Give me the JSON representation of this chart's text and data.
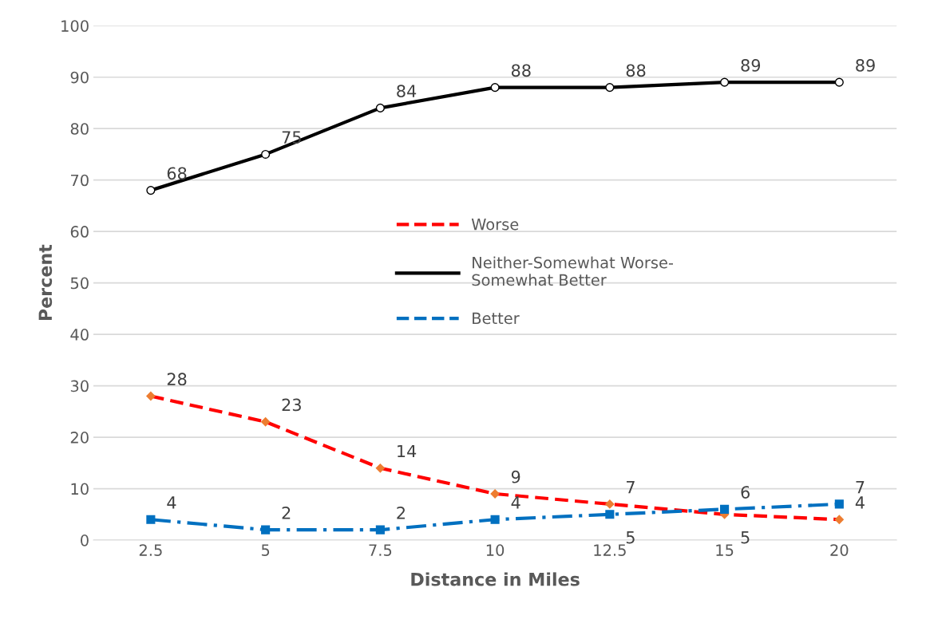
{
  "chart_data": {
    "type": "line",
    "xlabel": "Distance in Miles",
    "ylabel": "Percent",
    "categories": [
      "2.5",
      "5",
      "7.5",
      "10",
      "12.5",
      "15",
      "20"
    ],
    "series": [
      {
        "name": "Worse",
        "color": "#ff0000",
        "values": [
          28,
          23,
          14,
          9,
          7,
          5,
          4
        ],
        "marker": "diamond",
        "line_style": "dashed"
      },
      {
        "name": "Neither-Somewhat Worse-\nSomewhat Better",
        "color": "#000000",
        "values": [
          68,
          75,
          84,
          88,
          88,
          89,
          89
        ],
        "marker": "circle",
        "line_style": "solid"
      },
      {
        "name": "Better",
        "color": "#0070c0",
        "values": [
          4,
          2,
          2,
          4,
          5,
          6,
          7
        ],
        "marker": "square",
        "line_style": "dashdot"
      }
    ],
    "ylim": [
      0,
      100
    ],
    "yticks": [
      0,
      10,
      20,
      30,
      40,
      50,
      60,
      70,
      80,
      90,
      100
    ],
    "grid": "y",
    "legend": "center",
    "data_labels": true
  }
}
